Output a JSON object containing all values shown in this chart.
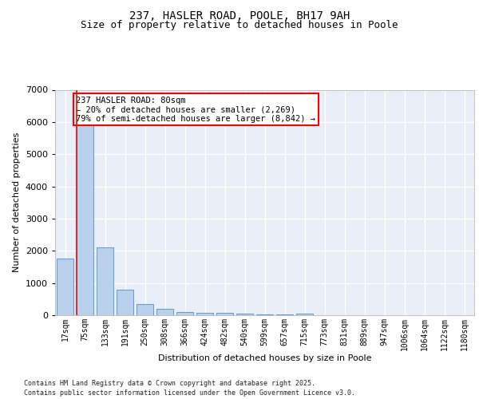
{
  "title1": "237, HASLER ROAD, POOLE, BH17 9AH",
  "title2": "Size of property relative to detached houses in Poole",
  "xlabel": "Distribution of detached houses by size in Poole",
  "ylabel": "Number of detached properties",
  "categories": [
    "17sqm",
    "75sqm",
    "133sqm",
    "191sqm",
    "250sqm",
    "308sqm",
    "366sqm",
    "424sqm",
    "482sqm",
    "540sqm",
    "599sqm",
    "657sqm",
    "715sqm",
    "773sqm",
    "831sqm",
    "889sqm",
    "947sqm",
    "1006sqm",
    "1064sqm",
    "1122sqm",
    "1180sqm"
  ],
  "values": [
    1750,
    5950,
    2100,
    800,
    350,
    195,
    110,
    75,
    75,
    45,
    35,
    30,
    55,
    10,
    5,
    5,
    3,
    3,
    2,
    2,
    1
  ],
  "bar_color": "#b8d0eb",
  "bar_edge_color": "#5b9bd5",
  "vline_color": "red",
  "vline_x_index": 1,
  "annotation_text": "237 HASLER ROAD: 80sqm\n← 20% of detached houses are smaller (2,269)\n79% of semi-detached houses are larger (8,842) →",
  "annotation_box_color": "white",
  "annotation_box_edge_color": "red",
  "ylim": [
    0,
    7000
  ],
  "yticks": [
    0,
    1000,
    2000,
    3000,
    4000,
    5000,
    6000,
    7000
  ],
  "background_color": "#e8eef8",
  "grid_color": "white",
  "footnote1": "Contains HM Land Registry data © Crown copyright and database right 2025.",
  "footnote2": "Contains public sector information licensed under the Open Government Licence v3.0.",
  "title_fontsize": 10,
  "subtitle_fontsize": 9,
  "tick_fontsize": 7,
  "ylabel_fontsize": 8,
  "xlabel_fontsize": 8,
  "footnote_fontsize": 6,
  "annotation_fontsize": 7.5
}
